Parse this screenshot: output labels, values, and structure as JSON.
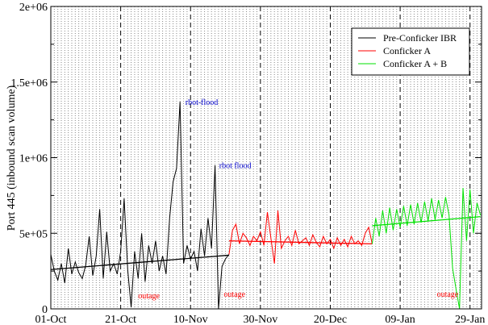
{
  "chart_data": {
    "type": "line",
    "title": "",
    "xlabel": "",
    "ylabel": "Port 445 (inbound scan volume)",
    "xlim_days": [
      0,
      123.3
    ],
    "ylim": [
      0,
      2000000
    ],
    "x_unit": "days since 01-Oct",
    "x_ticks": [
      {
        "day": 0,
        "label": "01-Oct"
      },
      {
        "day": 20,
        "label": "21-Oct"
      },
      {
        "day": 40,
        "label": "10-Nov"
      },
      {
        "day": 60,
        "label": "30-Nov"
      },
      {
        "day": 80,
        "label": "20-Dec"
      },
      {
        "day": 100,
        "label": "09-Jan"
      },
      {
        "day": 120,
        "label": "29-Jan"
      }
    ],
    "y_ticks": [
      {
        "value": 0,
        "label": "0"
      },
      {
        "value": 500000,
        "label": "5e+05"
      },
      {
        "value": 1000000,
        "label": "1e+06"
      },
      {
        "value": 1500000,
        "label": "1.5e+06"
      },
      {
        "value": 2000000,
        "label": "2e+06"
      }
    ],
    "y_minor_step": 250000,
    "grid": "vertical dotted daily, dashed at labelled dates",
    "legend_position": "top-right",
    "series": [
      {
        "name": "Pre-Conficker IBR",
        "color": "#000000",
        "start_day": 0,
        "scale": 1000,
        "values": [
          360,
          250,
          190,
          300,
          170,
          400,
          230,
          310,
          240,
          200,
          290,
          480,
          220,
          350,
          660,
          200,
          510,
          250,
          300,
          230,
          380,
          730,
          260,
          10,
          380,
          200,
          500,
          180,
          420,
          300,
          450,
          250,
          350,
          230,
          600,
          840,
          930,
          1370,
          300,
          420,
          330,
          380,
          250,
          530,
          350,
          600,
          400,
          950,
          0,
          280,
          330,
          360
        ],
        "trend": [
          [
            0,
            260000
          ],
          [
            51,
            355000
          ]
        ]
      },
      {
        "name": "Conficker A",
        "color": "#ff0000",
        "start_day": 51,
        "scale": 1000,
        "values": [
          360,
          520,
          560,
          430,
          500,
          470,
          420,
          480,
          450,
          510,
          420,
          640,
          470,
          300,
          650,
          400,
          450,
          480,
          420,
          520,
          430,
          450,
          470,
          420,
          490,
          440,
          410,
          480,
          430,
          460,
          400,
          470,
          420,
          460,
          410,
          480,
          430,
          450,
          420,
          500,
          540,
          430
        ],
        "trend": [
          [
            51,
            450000
          ],
          [
            92,
            430000
          ]
        ]
      },
      {
        "name": "Conficker A + B",
        "color": "#00e000",
        "start_day": 92,
        "scale": 1000,
        "values": [
          430,
          600,
          480,
          650,
          500,
          670,
          520,
          660,
          540,
          680,
          550,
          690,
          560,
          700,
          570,
          710,
          580,
          730,
          590,
          720,
          600,
          740,
          620,
          270,
          130,
          0,
          800,
          450,
          790,
          500,
          700,
          620
        ],
        "trend": [
          [
            92,
            550000
          ],
          [
            123,
            610000
          ]
        ]
      }
    ],
    "annotations": [
      {
        "text": "rbot-flood",
        "day": 38.5,
        "value": 1350000,
        "color": "#0000cc"
      },
      {
        "text": "rbot flood",
        "day": 48.2,
        "value": 930000,
        "color": "#0000cc"
      },
      {
        "text": "outage",
        "day": 25,
        "value": 70000,
        "color": "#ff0000"
      },
      {
        "text": "outage",
        "day": 49.5,
        "value": 80000,
        "color": "#ff0000"
      },
      {
        "text": "outage",
        "day": 110.5,
        "value": 80000,
        "color": "#ff0000"
      }
    ]
  }
}
